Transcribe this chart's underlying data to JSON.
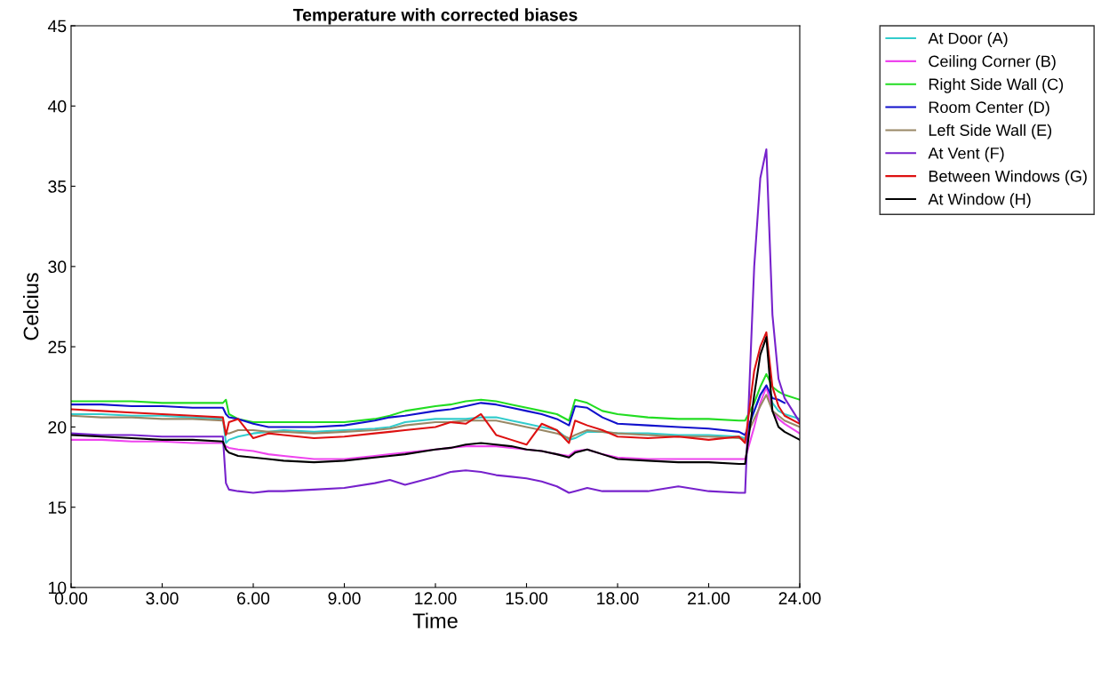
{
  "chart_data": {
    "type": "line",
    "title": "Temperature with corrected biases",
    "xlabel": "Time",
    "ylabel": "Celcius",
    "x": [
      0,
      1,
      2,
      3,
      4,
      5,
      5.1,
      5.2,
      5.5,
      6,
      6.5,
      7,
      8,
      9,
      10,
      10.5,
      11,
      12,
      12.5,
      13,
      13.5,
      14,
      14.5,
      15,
      15.5,
      16,
      16.4,
      16.6,
      17,
      17.5,
      18,
      19,
      20,
      21,
      22,
      22.2,
      22.5,
      22.7,
      22.9,
      23.1,
      23.3,
      23.5,
      24
    ],
    "xlim": [
      0,
      24
    ],
    "xticks": [
      {
        "value": 0,
        "label": "0.00"
      },
      {
        "value": 3,
        "label": "3.00"
      },
      {
        "value": 6,
        "label": "6.00"
      },
      {
        "value": 9,
        "label": "9.00"
      },
      {
        "value": 12,
        "label": "12.00"
      },
      {
        "value": 15,
        "label": "15.00"
      },
      {
        "value": 18,
        "label": "18.00"
      },
      {
        "value": 21,
        "label": "21.00"
      },
      {
        "value": 24,
        "label": "24.00"
      }
    ],
    "ylim": [
      10,
      45
    ],
    "yticks": [
      10,
      15,
      20,
      25,
      30,
      35,
      40,
      45
    ],
    "grid": false,
    "legend": "top right",
    "marker": "none",
    "line_style": "solid",
    "series": [
      {
        "name": "At Door (A)",
        "color": "#33cccc",
        "values": [
          20.8,
          20.8,
          20.7,
          20.7,
          20.6,
          20.5,
          19.0,
          19.2,
          19.4,
          19.6,
          19.7,
          19.8,
          19.7,
          19.8,
          19.9,
          20.0,
          20.3,
          20.5,
          20.5,
          20.5,
          20.6,
          20.6,
          20.4,
          20.2,
          20.0,
          19.8,
          19.2,
          19.3,
          19.7,
          19.7,
          19.6,
          19.6,
          19.5,
          19.5,
          19.4,
          19.3,
          21.0,
          22.0,
          22.5,
          21.5,
          21.0,
          20.8,
          20.5
        ]
      },
      {
        "name": "Ceiling Corner (B)",
        "color": "#ee44ee",
        "values": [
          19.2,
          19.2,
          19.1,
          19.1,
          19.0,
          19.0,
          18.8,
          18.7,
          18.6,
          18.5,
          18.3,
          18.2,
          18.0,
          18.0,
          18.2,
          18.3,
          18.4,
          18.6,
          18.7,
          18.8,
          18.8,
          18.8,
          18.7,
          18.6,
          18.5,
          18.3,
          18.2,
          18.5,
          18.6,
          18.3,
          18.1,
          18.0,
          18.0,
          18.0,
          18.0,
          18.0,
          20.0,
          21.5,
          22.5,
          21.0,
          20.5,
          20.2,
          19.6
        ]
      },
      {
        "name": "Right Side Wall (C)",
        "color": "#22dd22",
        "values": [
          21.6,
          21.6,
          21.6,
          21.5,
          21.5,
          21.5,
          21.7,
          20.8,
          20.5,
          20.3,
          20.3,
          20.3,
          20.3,
          20.3,
          20.5,
          20.7,
          21.0,
          21.3,
          21.4,
          21.6,
          21.7,
          21.6,
          21.4,
          21.2,
          21.0,
          20.8,
          20.4,
          21.7,
          21.5,
          21.0,
          20.8,
          20.6,
          20.5,
          20.5,
          20.4,
          20.4,
          21.5,
          22.5,
          23.3,
          22.5,
          22.2,
          22.0,
          21.7
        ]
      },
      {
        "name": "Room Center (D)",
        "color": "#1111cc",
        "values": [
          21.4,
          21.4,
          21.3,
          21.3,
          21.2,
          21.2,
          20.8,
          20.6,
          20.5,
          20.2,
          20.0,
          20.0,
          20.0,
          20.1,
          20.4,
          20.6,
          20.7,
          21.0,
          21.1,
          21.3,
          21.5,
          21.4,
          21.2,
          21.0,
          20.8,
          20.5,
          20.1,
          21.3,
          21.2,
          20.6,
          20.2,
          20.1,
          20.0,
          19.9,
          19.7,
          19.5,
          21.0,
          22.0,
          22.6,
          21.8,
          21.7,
          21.5,
          null
        ]
      },
      {
        "name": "Left Side Wall (E)",
        "color": "#998866",
        "values": [
          20.7,
          20.6,
          20.6,
          20.5,
          20.5,
          20.4,
          19.6,
          19.6,
          19.8,
          19.8,
          19.7,
          19.7,
          19.6,
          19.7,
          19.8,
          19.9,
          20.1,
          20.3,
          20.3,
          20.4,
          20.4,
          20.4,
          20.2,
          20.0,
          19.8,
          19.6,
          19.3,
          19.5,
          19.8,
          19.7,
          19.6,
          19.5,
          19.4,
          19.4,
          19.3,
          19.2,
          20.5,
          21.3,
          22.0,
          21.0,
          20.7,
          20.4,
          20.0
        ]
      },
      {
        "name": "At Vent (F)",
        "color": "#7722cc",
        "values": [
          19.6,
          19.5,
          19.5,
          19.4,
          19.4,
          19.4,
          16.5,
          16.1,
          16.0,
          15.9,
          16.0,
          16.0,
          16.1,
          16.2,
          16.5,
          16.7,
          16.4,
          16.9,
          17.2,
          17.3,
          17.2,
          17.0,
          16.9,
          16.8,
          16.6,
          16.3,
          15.9,
          16.0,
          16.2,
          16.0,
          16.0,
          16.0,
          16.3,
          16.0,
          15.9,
          15.9,
          30.0,
          35.5,
          37.3,
          27.0,
          23.0,
          21.8,
          20.3
        ]
      },
      {
        "name": "Between Windows (G)",
        "color": "#dd1111",
        "values": [
          21.1,
          21.0,
          20.9,
          20.8,
          20.7,
          20.6,
          19.5,
          20.3,
          20.5,
          19.3,
          19.6,
          19.5,
          19.3,
          19.4,
          19.6,
          19.7,
          19.8,
          20.0,
          20.3,
          20.2,
          20.8,
          19.5,
          19.2,
          18.9,
          20.2,
          19.8,
          19.0,
          20.4,
          20.1,
          19.8,
          19.4,
          19.3,
          19.4,
          19.2,
          19.4,
          19.0,
          23.5,
          25.0,
          25.9,
          22.5,
          21.3,
          20.7,
          20.2
        ]
      },
      {
        "name": "At Window (H)",
        "color": "#000000",
        "values": [
          19.5,
          19.4,
          19.3,
          19.2,
          19.2,
          19.1,
          18.6,
          18.4,
          18.2,
          18.1,
          18.0,
          17.9,
          17.8,
          17.9,
          18.1,
          18.2,
          18.3,
          18.6,
          18.7,
          18.9,
          19.0,
          18.9,
          18.8,
          18.6,
          18.5,
          18.3,
          18.1,
          18.4,
          18.6,
          18.3,
          18.0,
          17.9,
          17.8,
          17.8,
          17.7,
          17.7,
          22.0,
          24.5,
          25.6,
          21.0,
          20.0,
          19.7,
          19.2
        ]
      }
    ]
  }
}
